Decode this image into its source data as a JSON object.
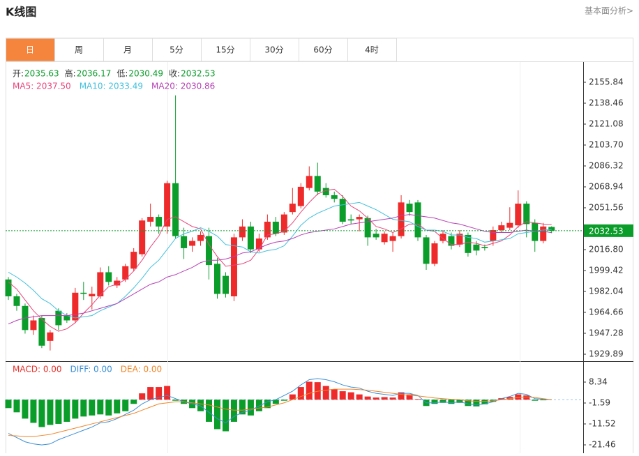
{
  "header": {
    "title": "K线图",
    "link": "基本面分析>"
  },
  "tabs": [
    "日",
    "周",
    "月",
    "5分",
    "15分",
    "30分",
    "60分",
    "4时"
  ],
  "active_tab": 0,
  "chart_data": {
    "type": "candlestick",
    "info": [
      {
        "label": "开:",
        "value": 2035.63
      },
      {
        "label": "高:",
        "value": 2036.17
      },
      {
        "label": "低:",
        "value": 2030.49
      },
      {
        "label": "收:",
        "value": 2032.53
      }
    ],
    "info_color": "#0a9d2a",
    "up_color": "#ee2a2a",
    "down_color": "#0a9d2a",
    "open": [
      1992,
      1978,
      1970,
      1950,
      1960,
      1941,
      1966,
      1962,
      1958,
      1981,
      1978,
      1978,
      1998,
      1987,
      1992,
      2001,
      2013,
      2040,
      2044,
      2036,
      2072,
      2028,
      2020,
      2024,
      2028,
      2005,
      1995,
      1978,
      2027,
      2036,
      2017,
      2027,
      2040,
      2031,
      2048,
      2053,
      2068,
      2078,
      2068,
      2062,
      2059,
      2042,
      2042,
      2043,
      2030,
      2023,
      2024,
      2028,
      2055,
      2056,
      2027,
      2005,
      2024,
      2028,
      2021,
      2029,
      2021,
      2019,
      2024,
      2033,
      2035,
      2037,
      2055,
      2039,
      2024,
      2035.63
    ],
    "close": [
      1978,
      1970,
      1950,
      1958,
      1937,
      1948,
      1954,
      1958,
      1981,
      1980,
      1980,
      1998,
      1990,
      1991,
      2003,
      2015,
      2041,
      2044,
      2036,
      2072,
      2028,
      2018,
      2024,
      2029,
      2004,
      1980,
      1980,
      2027,
      2036,
      2017,
      2026,
      2040,
      2030,
      2046,
      2055,
      2069,
      2078,
      2065,
      2062,
      2059,
      2040,
      2041,
      2044,
      2027,
      2027,
      2030,
      2028,
      2056,
      2048,
      2027,
      2005,
      2022,
      2030,
      2020,
      2030,
      2014,
      2016,
      2018,
      2033,
      2037,
      2039,
      2055,
      2038,
      2024,
      2036,
      2032.53
    ],
    "high": [
      1994,
      1980,
      1972,
      1962,
      1962,
      1950,
      1968,
      1964,
      1985,
      1990,
      1986,
      2002,
      2003,
      1994,
      2005,
      2018,
      2043,
      2055,
      2046,
      2074,
      2145,
      2035,
      2027,
      2032,
      2035,
      2010,
      1998,
      2030,
      2042,
      2040,
      2030,
      2046,
      2044,
      2048,
      2068,
      2072,
      2086,
      2089,
      2072,
      2065,
      2062,
      2046,
      2046,
      2045,
      2034,
      2032,
      2031,
      2062,
      2058,
      2058,
      2029,
      2024,
      2033,
      2031,
      2033,
      2031,
      2024,
      2021,
      2036,
      2040,
      2052,
      2066,
      2057,
      2042,
      2039,
      2036.17
    ],
    "low": [
      1975,
      1966,
      1947,
      1946,
      1935,
      1933,
      1950,
      1956,
      1956,
      1975,
      1967,
      1976,
      1987,
      1985,
      1990,
      1999,
      2011,
      2036,
      2030,
      2030,
      2026,
      2009,
      2015,
      2020,
      1992,
      1976,
      1977,
      1974,
      2024,
      2014,
      2015,
      2025,
      2028,
      2029,
      2046,
      2051,
      2066,
      2062,
      2060,
      2056,
      2038,
      2038,
      2032,
      2020,
      2025,
      2021,
      2015,
      2026,
      2045,
      2024,
      2000,
      2003,
      2022,
      2017,
      2019,
      2011,
      2012,
      2016,
      2020,
      2031,
      2033,
      2035,
      2027,
      2015,
      2022,
      2030.49
    ],
    "series": [
      {
        "label": "MA5: 2037.50",
        "color": "#e8467c",
        "values": [
          1990,
          1984,
          1975,
          1966,
          1959,
          1953,
          1949,
          1951,
          1956,
          1964,
          1971,
          1979,
          1986,
          1988,
          1992,
          1999,
          2008,
          2019,
          2028,
          2042,
          2044,
          2040,
          2036,
          2034,
          2021,
          2011,
          2003,
          2004,
          2005,
          2008,
          2017,
          2029,
          2030,
          2032,
          2039,
          2048,
          2056,
          2063,
          2066,
          2067,
          2061,
          2053,
          2049,
          2043,
          2036,
          2034,
          2031,
          2034,
          2038,
          2038,
          2033,
          2032,
          2026,
          2021,
          2021,
          2023,
          2022,
          2020,
          2022,
          2024,
          2029,
          2036,
          2040,
          2039,
          2038,
          2037.5
        ]
      },
      {
        "label": "MA10: 2033.49",
        "color": "#41c0dd",
        "values": [
          1998,
          1994,
          1989,
          1983,
          1976,
          1972,
          1966,
          1962,
          1960,
          1961,
          1962,
          1966,
          1969,
          1972,
          1978,
          1985,
          1993,
          2002,
          2008,
          2017,
          2026,
          2030,
          2032,
          2035,
          2032,
          2028,
          2021,
          2020,
          2019,
          2015,
          2014,
          2016,
          2017,
          2020,
          2028,
          2037,
          2043,
          2047,
          2050,
          2053,
          2054,
          2055,
          2056,
          2053,
          2050,
          2046,
          2042,
          2041,
          2040,
          2036,
          2033,
          2033,
          2032,
          2029,
          2029,
          2027,
          2026,
          2023,
          2024,
          2025,
          2026,
          2030,
          2031,
          2032,
          2033,
          2033.49
        ]
      },
      {
        "label": "MA20: 2030.86",
        "color": "#b541b5",
        "values": [
          1955,
          1958,
          1960,
          1961,
          1962,
          1962,
          1962,
          1962,
          1963,
          1964,
          1966,
          1968,
          1970,
          1972,
          1976,
          1980,
          1984,
          1988,
          1990,
          1994,
          1996,
          1999,
          2002,
          2006,
          2008,
          2008,
          2009,
          2011,
          2014,
          2015,
          2018,
          2021,
          2023,
          2024,
          2026,
          2029,
          2031,
          2032,
          2033,
          2034,
          2036,
          2038,
          2039,
          2040,
          2041,
          2042,
          2043,
          2045,
          2046,
          2045,
          2044,
          2043,
          2041,
          2039,
          2038,
          2036,
          2034,
          2032,
          2031,
          2031,
          2031,
          2032,
          2033,
          2032,
          2032,
          2030.86
        ]
      }
    ],
    "ylim": [
      1924.11,
      2172.06
    ],
    "yticks": [
      {
        "value": 1929.89,
        "label": "1929.89"
      },
      1947.28,
      1964.66,
      1982.04,
      1999.42,
      {
        "value": 2016.8,
        "label": "2016.80"
      },
      2051.56,
      2068.94,
      2086.32,
      {
        "value": 2103.7,
        "label": "2103.70"
      },
      2121.08,
      2138.46,
      2155.84
    ],
    "last_price": 2032.53,
    "macd": {
      "labels": [
        {
          "text": "MACD: 0.00",
          "color": "#e8312a"
        },
        {
          "text": "DIFF: 0.00",
          "color": "#3b8fd6"
        },
        {
          "text": "DEA: 0.00",
          "color": "#f08528"
        }
      ],
      "hist": [
        -4,
        -6,
        -9,
        -11,
        -13,
        -12,
        -11.5,
        -10.5,
        -9,
        -8,
        -7.5,
        -7,
        -7.5,
        -6.5,
        -5.5,
        -2,
        3,
        6,
        6,
        6.5,
        -0.5,
        -2,
        -4,
        -5.5,
        -10.5,
        -14,
        -15,
        -10.5,
        -7,
        -7.5,
        -5.5,
        -4,
        -2,
        -0.5,
        2.5,
        6,
        8.5,
        8.3,
        6.5,
        5,
        4,
        3.5,
        2.5,
        1.5,
        1,
        1.2,
        1,
        3.5,
        2.5,
        0.3,
        -3,
        -2,
        -1.5,
        -2,
        -1.5,
        -3,
        -3.2,
        -2.2,
        -1,
        0.7,
        1.3,
        2.5,
        2,
        -0.5,
        -0.3,
        0
      ],
      "diff": [
        -16,
        -18,
        -20,
        -21,
        -21.5,
        -21,
        -19,
        -17.5,
        -16,
        -14.5,
        -13,
        -11,
        -10.5,
        -9,
        -7,
        -5,
        -2,
        0,
        1,
        2,
        0.5,
        -1,
        -2,
        -3,
        -6,
        -9,
        -11,
        -8,
        -6,
        -5,
        -3,
        -1,
        0,
        2,
        4,
        7,
        9.5,
        10,
        9.5,
        8.5,
        7,
        6,
        5.5,
        4,
        3,
        2.5,
        2,
        3,
        3,
        2,
        -1.5,
        -1.5,
        -1,
        -1.5,
        -1,
        -2,
        -2.5,
        -2,
        -1,
        0.5,
        1.5,
        3,
        2.5,
        0.5,
        0.2,
        0
      ],
      "dea": [
        -17,
        -17.2,
        -17.5,
        -17.5,
        -17,
        -16.5,
        -15.5,
        -14.5,
        -13.5,
        -12.5,
        -11.5,
        -10.5,
        -9.5,
        -8.5,
        -7.5,
        -6.5,
        -5,
        -3.5,
        -2,
        -1.5,
        -1,
        -1,
        -1.5,
        -2,
        -2.5,
        -3.5,
        -4.5,
        -5,
        -5,
        -4.5,
        -4,
        -3.5,
        -2.5,
        -1.5,
        0,
        1.5,
        3,
        4,
        4.5,
        5,
        5,
        5,
        4.8,
        4.5,
        4,
        3.5,
        3,
        2.5,
        2,
        1.8,
        1.3,
        0.8,
        0.5,
        0.2,
        0,
        -0.5,
        -0.8,
        -0.8,
        -0.5,
        0,
        0.5,
        1,
        1.3,
        1,
        0.5,
        0
      ],
      "diff_color": "#3b8fd6",
      "dea_color": "#f08528",
      "ylim": [
        -25.42,
        17.61
      ],
      "yticks": [
        8.34,
        -1.59,
        -11.52,
        -21.46
      ]
    }
  }
}
